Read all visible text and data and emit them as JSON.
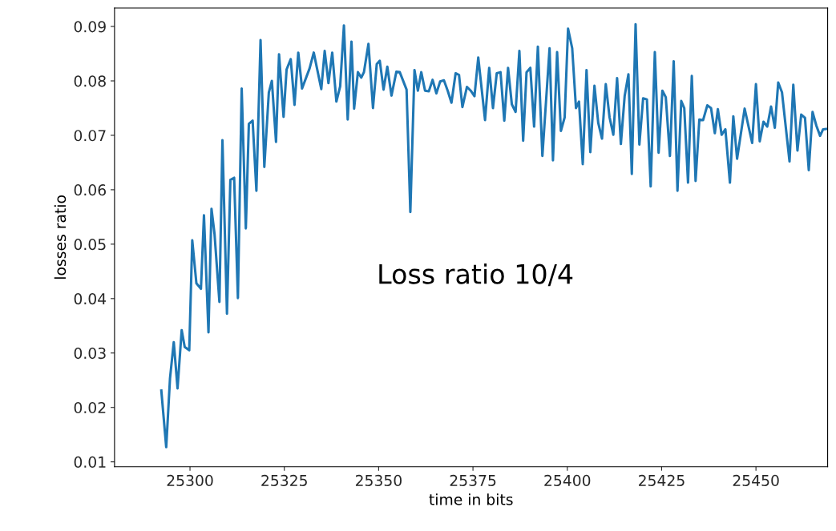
{
  "chart_data": {
    "type": "line",
    "xlabel": "time in bits",
    "ylabel": "losses ratio",
    "annotations": [
      "Loss ratio 10/4"
    ],
    "xlim": [
      25280,
      25469
    ],
    "ylim": [
      0.0091,
      0.0934
    ],
    "xticks": [
      25300,
      25325,
      25350,
      25375,
      25400,
      25425,
      25450
    ],
    "yticks": [
      0.01,
      0.02,
      0.03,
      0.04,
      0.05,
      0.06,
      0.07,
      0.08,
      0.09
    ],
    "marker": "none",
    "line_style": "solid",
    "series": [
      {
        "color": "#1f77b4",
        "x": [
          25292.4,
          25293.7,
          25294.7,
          25295.7,
          25296.7,
          25297.8,
          25298.6,
          25299.8,
          25300.6,
          25301.7,
          25302.9,
          25303.7,
          25304.9,
          25305.7,
          25306.5,
          25307.8,
          25308.6,
          25309.8,
          25310.7,
          25311.7,
          25312.7,
          25313.7,
          25314.8,
          25315.6,
          25316.6,
          25317.6,
          25318.7,
          25319.7,
          25320.9,
          25321.7,
          25322.8,
          25323.6,
          25324.8,
          25325.6,
          25326.7,
          25327.7,
          25328.7,
          25329.7,
          25331.7,
          25332.8,
          25334.8,
          25335.7,
          25336.7,
          25337.7,
          25338.8,
          25339.8,
          25340.8,
          25341.8,
          25342.8,
          25343.5,
          25344.5,
          25345.4,
          25346.1,
          25347.3,
          25348.5,
          25349.5,
          25350.3,
          25351.3,
          25352.3,
          25353.4,
          25354.7,
          25355.6,
          25357.4,
          25358.4,
          25359.5,
          25360.4,
          25361.3,
          25362.3,
          25363.3,
          25364.3,
          25365.3,
          25366.3,
          25367.3,
          25368.3,
          25369.3,
          25370.4,
          25371.3,
          25372.2,
          25373.4,
          25374.4,
          25375.4,
          25376.4,
          25378.2,
          25379.3,
          25380.3,
          25381.3,
          25382.3,
          25383.3,
          25384.3,
          25385.3,
          25386.3,
          25387.3,
          25388.3,
          25389.2,
          25390.2,
          25391.2,
          25392.2,
          25393.4,
          25395.3,
          25396.2,
          25397.3,
          25398.3,
          25399.3,
          25400.2,
          25401.3,
          25402.3,
          25403.1,
          25404.1,
          25405.1,
          25406.1,
          25407.2,
          25408.2,
          25409.2,
          25410.2,
          25411.2,
          25412.2,
          25413.2,
          25414.2,
          25415.2,
          25416.2,
          25417.1,
          25418.1,
          25419.1,
          25420.1,
          25421.1,
          25422.1,
          25423.2,
          25424.2,
          25425.2,
          25426.1,
          25427.2,
          25428.2,
          25429.2,
          25430.2,
          25431.0,
          25432.0,
          25433.0,
          25434.0,
          25435.0,
          25436.0,
          25437.1,
          25438.1,
          25439.1,
          25439.9,
          25440.9,
          25441.9,
          25443.1,
          25444.0,
          25445.0,
          25447.0,
          25449.0,
          25450.0,
          25451.0,
          25452.0,
          25453.0,
          25454.0,
          25455.0,
          25455.9,
          25456.9,
          25458.9,
          25459.9,
          25461.0,
          25462.0,
          25463.0,
          25464.0,
          25465.0,
          25466.0,
          25467.0,
          25467.8,
          25469.0
        ],
        "values": [
          0.0231,
          0.0127,
          0.0253,
          0.032,
          0.0235,
          0.0342,
          0.0311,
          0.0305,
          0.0507,
          0.0428,
          0.0418,
          0.0553,
          0.0338,
          0.0565,
          0.0519,
          0.0394,
          0.0691,
          0.0372,
          0.0618,
          0.0622,
          0.0401,
          0.0786,
          0.0529,
          0.0721,
          0.0727,
          0.0598,
          0.0875,
          0.0642,
          0.0779,
          0.08,
          0.0688,
          0.0849,
          0.0734,
          0.0821,
          0.084,
          0.0756,
          0.0852,
          0.0786,
          0.0823,
          0.0852,
          0.0785,
          0.0855,
          0.0796,
          0.0852,
          0.0762,
          0.079,
          0.0902,
          0.0729,
          0.0872,
          0.0749,
          0.0816,
          0.0806,
          0.0816,
          0.0868,
          0.075,
          0.0831,
          0.0837,
          0.0784,
          0.0826,
          0.0773,
          0.0817,
          0.0816,
          0.0784,
          0.0559,
          0.082,
          0.0782,
          0.0816,
          0.0782,
          0.0781,
          0.0802,
          0.0777,
          0.0799,
          0.0801,
          0.0782,
          0.076,
          0.0814,
          0.0811,
          0.0752,
          0.0789,
          0.0782,
          0.0772,
          0.0843,
          0.0728,
          0.0824,
          0.075,
          0.0814,
          0.0816,
          0.0727,
          0.0824,
          0.0757,
          0.0743,
          0.0855,
          0.069,
          0.0816,
          0.0824,
          0.0716,
          0.0863,
          0.0662,
          0.086,
          0.0654,
          0.0853,
          0.0708,
          0.0733,
          0.0896,
          0.086,
          0.075,
          0.0762,
          0.0647,
          0.082,
          0.0669,
          0.0791,
          0.0723,
          0.0694,
          0.0794,
          0.0733,
          0.0701,
          0.0805,
          0.0684,
          0.0772,
          0.0812,
          0.0629,
          0.0904,
          0.0683,
          0.0768,
          0.0766,
          0.0606,
          0.0853,
          0.0668,
          0.0782,
          0.077,
          0.0662,
          0.0836,
          0.0598,
          0.0763,
          0.075,
          0.0613,
          0.0809,
          0.0616,
          0.0729,
          0.0728,
          0.0755,
          0.075,
          0.0704,
          0.0748,
          0.0701,
          0.0711,
          0.0613,
          0.0735,
          0.0657,
          0.0749,
          0.0686,
          0.0794,
          0.0689,
          0.0725,
          0.0716,
          0.0753,
          0.0714,
          0.0797,
          0.0779,
          0.0652,
          0.0793,
          0.0672,
          0.0738,
          0.0732,
          0.0636,
          0.0743,
          0.0718,
          0.0699,
          0.0711,
          0.0712
        ]
      }
    ]
  }
}
